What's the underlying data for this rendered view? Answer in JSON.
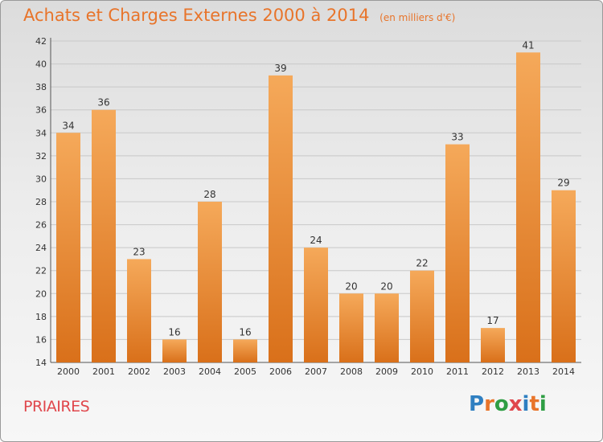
{
  "title": "Achats et Charges Externes 2000 à 2014",
  "subtitle": "(en milliers d'€)",
  "commune": "PRIAIRES",
  "brand": {
    "letters": [
      "P",
      "r",
      "o",
      "x",
      "i",
      "t",
      "i"
    ],
    "colors": [
      "#2f7fc1",
      "#e8742a",
      "#2f9e44",
      "#e0474c",
      "#2f7fc1",
      "#e8742a",
      "#2f9e44"
    ]
  },
  "colors": {
    "bar_top": "#f5a95a",
    "bar_bottom": "#d9701a",
    "title": "#e8742a",
    "commune": "#e0474c"
  },
  "chart_data": {
    "type": "bar",
    "categories": [
      "2000",
      "2001",
      "2002",
      "2003",
      "2004",
      "2005",
      "2006",
      "2007",
      "2008",
      "2009",
      "2010",
      "2011",
      "2012",
      "2013",
      "2014"
    ],
    "values": [
      34,
      36,
      23,
      16,
      28,
      16,
      39,
      24,
      20,
      20,
      22,
      33,
      17,
      41,
      29
    ],
    "ylim": [
      14,
      42
    ],
    "yticks": [
      14,
      16,
      18,
      20,
      22,
      24,
      26,
      28,
      30,
      32,
      34,
      36,
      38,
      40,
      42
    ],
    "grid": true,
    "data_labels": true
  }
}
